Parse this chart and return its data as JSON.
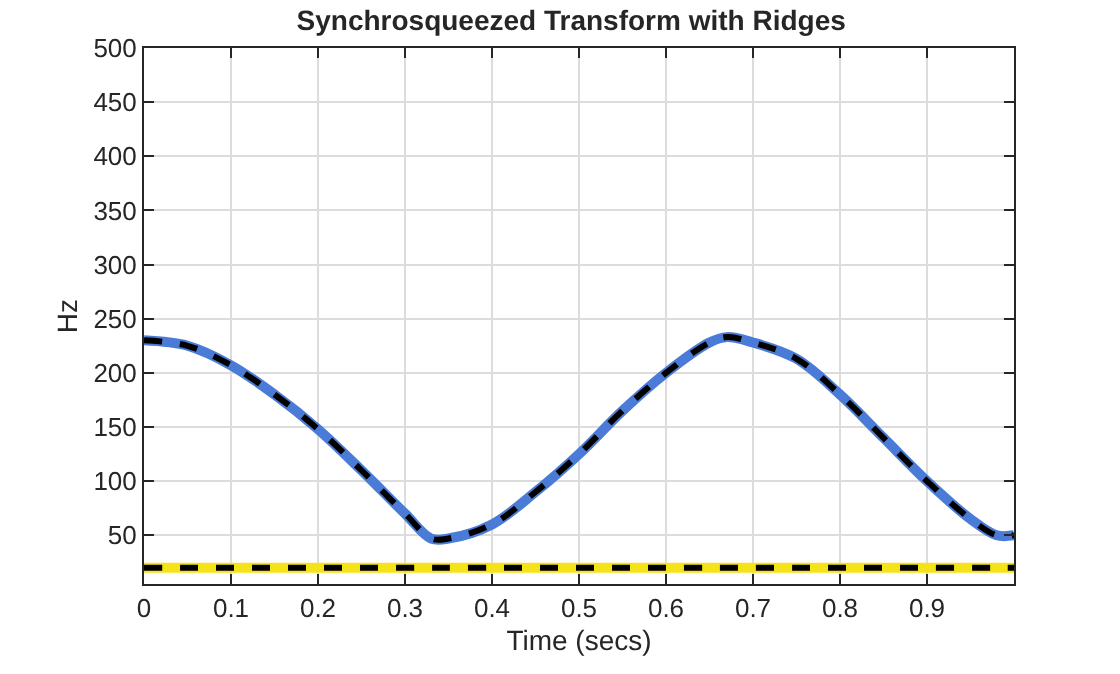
{
  "chart_data": {
    "type": "line",
    "title": "Synchrosqueezed Transform with Ridges",
    "xlabel": "Time (secs)",
    "ylabel": "Hz",
    "x": [
      0,
      0.05,
      0.1,
      0.15,
      0.2,
      0.25,
      0.3,
      0.33,
      0.35,
      0.4,
      0.45,
      0.5,
      0.55,
      0.6,
      0.65,
      0.67,
      0.7,
      0.75,
      0.8,
      0.85,
      0.9,
      0.95,
      0.98,
      1.0
    ],
    "series": [
      {
        "color": "#4a7bd6",
        "line_style": "solid",
        "values": [
          230,
          225,
          207,
          180,
          148,
          110,
          70,
          47,
          47,
          60,
          90,
          125,
          165,
          200,
          228,
          233,
          228,
          213,
          180,
          140,
          100,
          65,
          50,
          50
        ]
      },
      {
        "color": "#f5e31a",
        "line_style": "solid",
        "values": [
          20,
          20,
          20,
          20,
          20,
          20,
          20,
          20,
          20,
          20,
          20,
          20,
          20,
          20,
          20,
          20,
          20,
          20,
          20,
          20,
          20,
          20,
          20,
          20
        ]
      },
      {
        "color": "#000000",
        "line_style": "dashed",
        "values": [
          230,
          225,
          207,
          180,
          148,
          110,
          70,
          47,
          47,
          60,
          90,
          125,
          165,
          200,
          228,
          233,
          228,
          213,
          180,
          140,
          100,
          65,
          50,
          50
        ]
      },
      {
        "color": "#000000",
        "line_style": "dashed",
        "values": [
          20,
          20,
          20,
          20,
          20,
          20,
          20,
          20,
          20,
          20,
          20,
          20,
          20,
          20,
          20,
          20,
          20,
          20,
          20,
          20,
          20,
          20,
          20,
          20
        ]
      }
    ],
    "xlim": [
      0,
      1
    ],
    "xticks": [
      0,
      0.1,
      0.2,
      0.3,
      0.4,
      0.5,
      0.6,
      0.7,
      0.8,
      0.9
    ],
    "ylim": [
      5,
      500
    ],
    "yticks": [
      50,
      100,
      150,
      200,
      250,
      300,
      350,
      400,
      450,
      500
    ],
    "grid": true,
    "marker": "none"
  }
}
